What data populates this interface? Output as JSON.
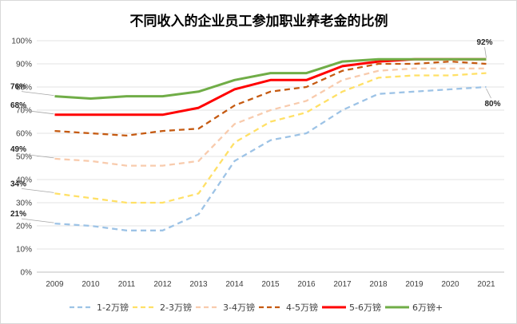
{
  "chart_data": {
    "type": "line",
    "title": "不同收入的企业员工参加职业养老金的比例",
    "xlabel": "",
    "ylabel": "",
    "x": [
      "2009",
      "2010",
      "2011",
      "2012",
      "2013",
      "2014",
      "2015",
      "2016",
      "2017",
      "2018",
      "2019",
      "2020",
      "2021"
    ],
    "ylim": [
      0,
      100
    ],
    "y_ticks": [
      0,
      10,
      20,
      30,
      40,
      50,
      60,
      70,
      80,
      90,
      100
    ],
    "y_tick_labels": [
      "0%",
      "10%",
      "20%",
      "30%",
      "40%",
      "50%",
      "60%",
      "70%",
      "80%",
      "90%",
      "100%"
    ],
    "grid": true,
    "legend_position": "bottom",
    "series": [
      {
        "name": "1-2万镑",
        "color": "#9dc3e6",
        "dash": "dashed",
        "values": [
          21,
          20,
          18,
          18,
          25,
          48,
          57,
          60,
          70,
          77,
          78,
          79,
          80
        ]
      },
      {
        "name": "2-3万镑",
        "color": "#ffe066",
        "dash": "dashed",
        "values": [
          34,
          32,
          30,
          30,
          34,
          56,
          65,
          69,
          78,
          84,
          85,
          85,
          86
        ]
      },
      {
        "name": "3-4万镑",
        "color": "#f8cbad",
        "dash": "dashed",
        "values": [
          49,
          48,
          46,
          46,
          48,
          64,
          70,
          74,
          83,
          87,
          88,
          88,
          88
        ]
      },
      {
        "name": "4-5万镑",
        "color": "#c55a11",
        "dash": "dashed",
        "values": [
          61,
          60,
          59,
          61,
          62,
          72,
          78,
          80,
          87,
          90,
          90,
          91,
          90
        ]
      },
      {
        "name": "5-6万镑",
        "color": "#ff0000",
        "dash": "solid",
        "values": [
          68,
          68,
          68,
          68,
          71,
          79,
          83,
          83,
          89,
          91,
          92,
          92,
          92
        ]
      },
      {
        "name": "6万镑+",
        "color": "#70ad47",
        "dash": "solid",
        "values": [
          76,
          75,
          76,
          76,
          78,
          83,
          86,
          86,
          91,
          92,
          92,
          92,
          92
        ]
      }
    ],
    "annotations": [
      {
        "text": "21%",
        "series": 0,
        "index": 0,
        "side": "left"
      },
      {
        "text": "34%",
        "series": 1,
        "index": 0,
        "side": "left"
      },
      {
        "text": "49%",
        "series": 2,
        "index": 0,
        "side": "left"
      },
      {
        "text": "68%",
        "series": 4,
        "index": 0,
        "side": "left"
      },
      {
        "text": "76%",
        "series": 5,
        "index": 0,
        "side": "left"
      },
      {
        "text": "92%",
        "series": 5,
        "index": 12,
        "side": "above"
      },
      {
        "text": "80%",
        "series": 0,
        "index": 12,
        "side": "below"
      }
    ]
  }
}
